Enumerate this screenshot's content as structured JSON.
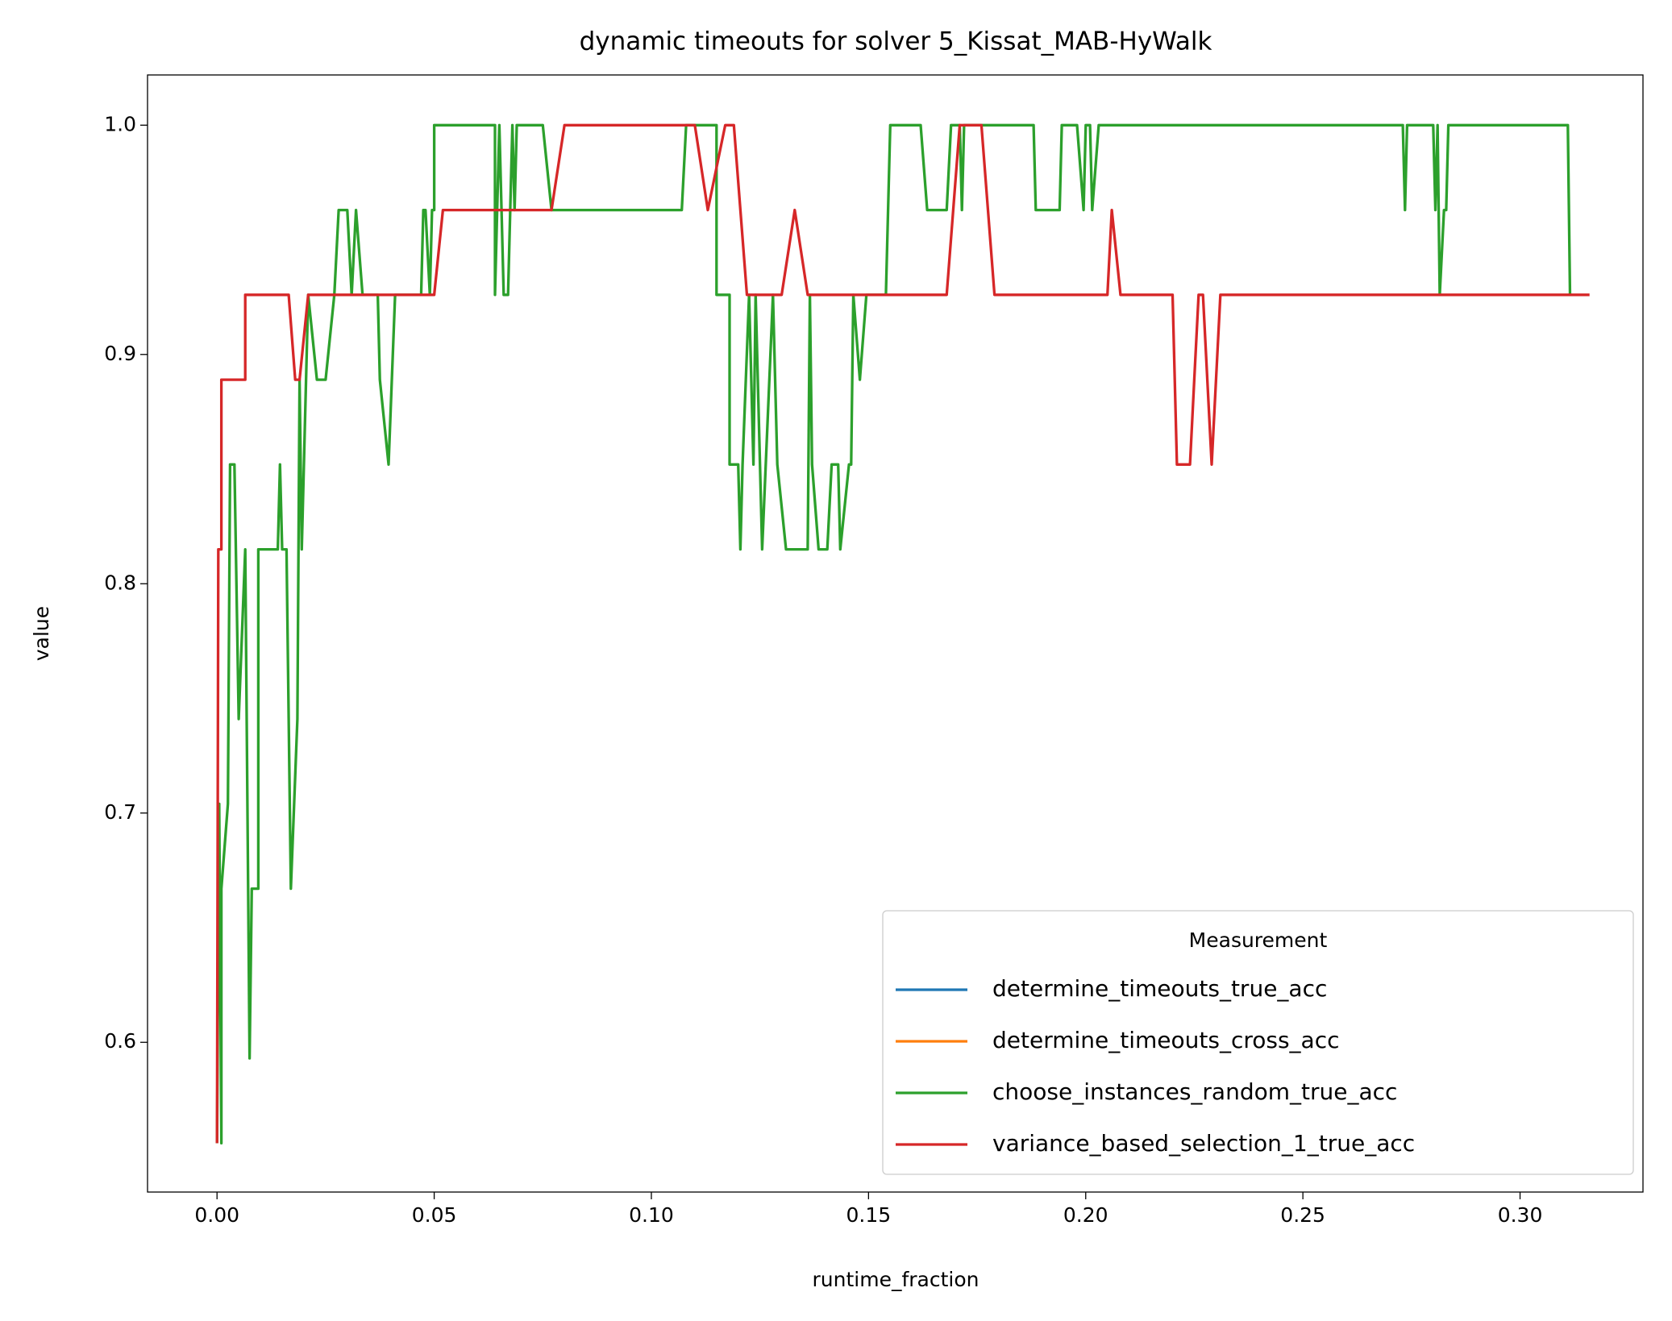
{
  "chart_data": {
    "type": "line",
    "title": "dynamic timeouts for solver 5_Kissat_MAB-HyWalk",
    "x_label": "runtime_fraction",
    "y_label": "value",
    "legend_title": "Measurement",
    "legend": "lower right",
    "xlim": [
      -0.016,
      0.3283
    ],
    "ylim": [
      0.5347,
      1.0219
    ],
    "xticks": [
      {
        "value": 0,
        "label": "0.00"
      },
      {
        "value": 0.05,
        "label": "0.05"
      },
      {
        "value": 0.1,
        "label": "0.10"
      },
      {
        "value": 0.15,
        "label": "0.15"
      },
      {
        "value": 0.2,
        "label": "0.20"
      },
      {
        "value": 0.25,
        "label": "0.25"
      },
      {
        "value": 0.3,
        "label": "0.30"
      }
    ],
    "yticks": [
      0.6,
      0.7,
      0.8,
      0.9,
      {
        "value": 1,
        "label": "1.0"
      }
    ],
    "series": [
      {
        "name": "determine_timeouts_true_acc",
        "color": "#1f77b4",
        "x": [],
        "values": []
      },
      {
        "name": "determine_timeouts_cross_acc",
        "color": "#ff7f0e",
        "x": [],
        "values": []
      },
      {
        "name": "choose_instances_random_true_acc",
        "color": "#2ca02c",
        "x": [
          0,
          0.0005,
          0.001,
          0.001,
          0.0025,
          0.003,
          0.004,
          0.005,
          0.0065,
          0.0075,
          0.008,
          0.0095,
          0.0095,
          0.014,
          0.0145,
          0.015,
          0.016,
          0.017,
          0.0185,
          0.019,
          0.0195,
          0.021,
          0.023,
          0.025,
          0.027,
          0.028,
          0.03,
          0.031,
          0.032,
          0.0335,
          0.037,
          0.0375,
          0.0395,
          0.041,
          0.047,
          0.0475,
          0.048,
          0.049,
          0.0495,
          0.05,
          0.05,
          0.064,
          0.064,
          0.065,
          0.066,
          0.067,
          0.068,
          0.0685,
          0.069,
          0.075,
          0.077,
          0.107,
          0.108,
          0.115,
          0.115,
          0.118,
          0.118,
          0.12,
          0.1205,
          0.121,
          0.1225,
          0.1235,
          0.124,
          0.125,
          0.1255,
          0.128,
          0.129,
          0.131,
          0.136,
          0.1365,
          0.137,
          0.1385,
          0.1405,
          0.1415,
          0.143,
          0.1435,
          0.1455,
          0.146,
          0.1465,
          0.148,
          0.1495,
          0.154,
          0.155,
          0.162,
          0.1635,
          0.168,
          0.169,
          0.171,
          0.1715,
          0.172,
          0.188,
          0.1885,
          0.194,
          0.1945,
          0.198,
          0.1995,
          0.2,
          0.201,
          0.2015,
          0.203,
          0.273,
          0.2735,
          0.274,
          0.28,
          0.2805,
          0.281,
          0.2815,
          0.2825,
          0.283,
          0.2835,
          0.311,
          0.3115
        ],
        "values": [
          0.556,
          0.704,
          0.556,
          0.667,
          0.704,
          0.852,
          0.852,
          0.741,
          0.815,
          0.593,
          0.667,
          0.667,
          0.815,
          0.815,
          0.852,
          0.815,
          0.815,
          0.667,
          0.741,
          0.889,
          0.815,
          0.926,
          0.889,
          0.889,
          0.926,
          0.963,
          0.963,
          0.926,
          0.963,
          0.926,
          0.926,
          0.889,
          0.852,
          0.926,
          0.926,
          0.963,
          0.963,
          0.926,
          0.963,
          0.963,
          1,
          1,
          0.926,
          1,
          0.926,
          0.926,
          1,
          0.963,
          1,
          1,
          0.963,
          0.963,
          1,
          1,
          0.926,
          0.926,
          0.852,
          0.852,
          0.815,
          0.852,
          0.926,
          0.852,
          0.926,
          0.852,
          0.815,
          0.926,
          0.852,
          0.815,
          0.815,
          0.926,
          0.852,
          0.815,
          0.815,
          0.852,
          0.852,
          0.815,
          0.852,
          0.852,
          0.926,
          0.889,
          0.926,
          0.926,
          1,
          1,
          0.963,
          0.963,
          1,
          1,
          0.963,
          1,
          1,
          0.963,
          0.963,
          1,
          1,
          0.963,
          1,
          1,
          0.963,
          1,
          1,
          0.963,
          1,
          1,
          0.963,
          1,
          0.926,
          0.963,
          0.963,
          1,
          1,
          0.926
        ]
      },
      {
        "name": "variance_based_selection_1_true_acc",
        "color": "#d62728",
        "x": [
          0,
          0.0003,
          0.001,
          0.001,
          0.0065,
          0.0065,
          0.0165,
          0.018,
          0.019,
          0.021,
          0.05,
          0.052,
          0.077,
          0.08,
          0.11,
          0.113,
          0.117,
          0.119,
          0.122,
          0.13,
          0.133,
          0.136,
          0.168,
          0.171,
          0.176,
          0.179,
          0.205,
          0.206,
          0.208,
          0.22,
          0.221,
          0.224,
          0.225,
          0.226,
          0.227,
          0.229,
          0.231,
          0.316
        ],
        "values": [
          0.556,
          0.815,
          0.815,
          0.889,
          0.889,
          0.926,
          0.926,
          0.889,
          0.889,
          0.926,
          0.926,
          0.963,
          0.963,
          1,
          1,
          0.963,
          1,
          1,
          0.926,
          0.926,
          0.963,
          0.926,
          0.926,
          1,
          1,
          0.926,
          0.926,
          0.963,
          0.926,
          0.926,
          0.852,
          0.852,
          0.889,
          0.926,
          0.926,
          0.852,
          0.926,
          0.926
        ]
      }
    ]
  }
}
